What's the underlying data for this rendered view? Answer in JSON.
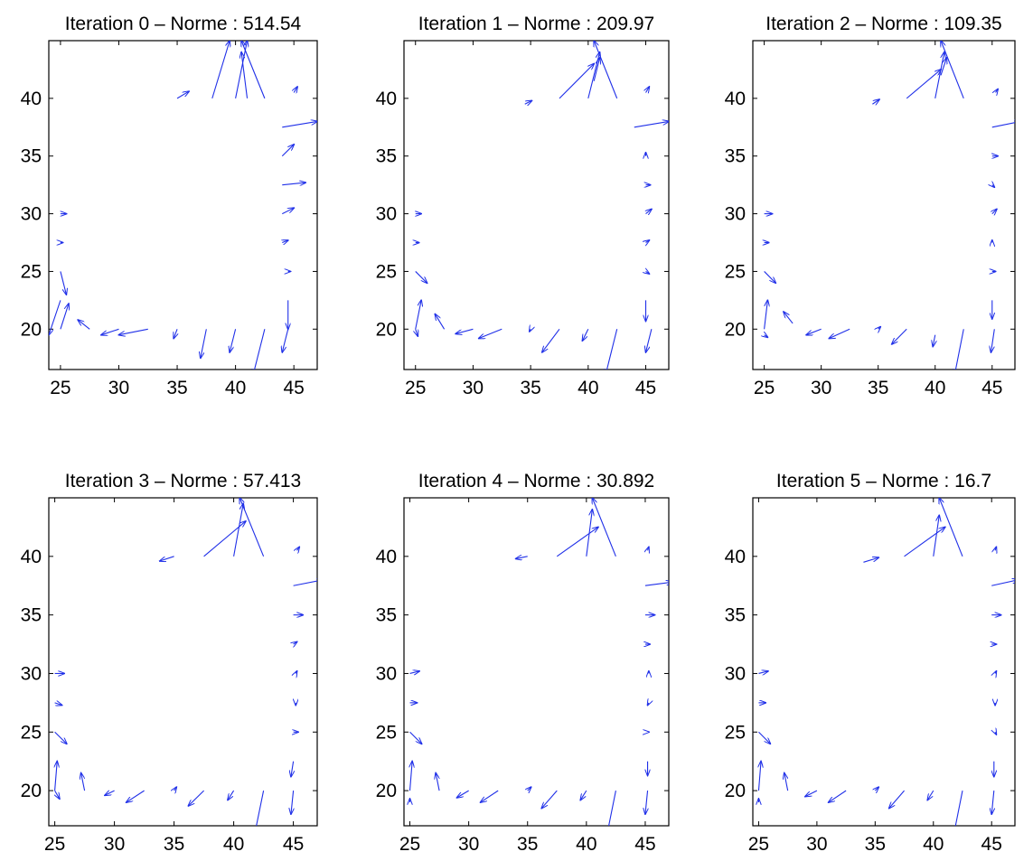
{
  "figure": {
    "arrow_color": "#1f2fe8",
    "axis_color": "#000000"
  },
  "chart_data": [
    {
      "type": "quiver",
      "title": "Iteration 0 – Norme : 514.54",
      "xlim": [
        24,
        47
      ],
      "ylim": [
        16.5,
        45
      ],
      "xticks": [
        "25",
        "30",
        "35",
        "40",
        "45"
      ],
      "yticks": [
        "20",
        "25",
        "30",
        "35",
        "40"
      ],
      "vectors": [
        [
          38,
          40,
          1.5,
          5
        ],
        [
          40,
          40,
          1,
          5
        ],
        [
          42.5,
          40,
          -2,
          5
        ],
        [
          35,
          40,
          1,
          0.6
        ],
        [
          41,
          40,
          -0.5,
          4
        ],
        [
          45,
          40.5,
          0.3,
          0.5
        ],
        [
          44,
          37.5,
          3,
          0.5
        ],
        [
          44,
          35,
          1,
          1
        ],
        [
          44,
          32.5,
          2,
          0.2
        ],
        [
          44,
          30,
          1,
          0.5
        ],
        [
          44,
          27.5,
          0.5,
          0.2
        ],
        [
          44.5,
          25,
          0.2,
          0
        ],
        [
          44.5,
          22.5,
          0,
          -2.5
        ],
        [
          44.5,
          20,
          -0.5,
          -2
        ],
        [
          42.5,
          20,
          -1,
          -4
        ],
        [
          40,
          20,
          -0.5,
          -2
        ],
        [
          37.5,
          20,
          -0.5,
          -2.5
        ],
        [
          35,
          20,
          -0.3,
          -0.8
        ],
        [
          32.5,
          20,
          -2.5,
          -0.5
        ],
        [
          30,
          20,
          -1.5,
          -0.5
        ],
        [
          27.5,
          20,
          -1,
          0.8
        ],
        [
          25,
          20,
          0.7,
          2.2
        ],
        [
          25,
          22.5,
          -1,
          -3
        ],
        [
          25,
          25,
          0.5,
          -2
        ],
        [
          25,
          27.5,
          0.2,
          0
        ],
        [
          25,
          30,
          0.5,
          0
        ]
      ]
    },
    {
      "type": "quiver",
      "title": "Iteration 1 – Norme : 209.97",
      "xlim": [
        24,
        47
      ],
      "ylim": [
        16.5,
        45
      ],
      "xticks": [
        "25",
        "30",
        "35",
        "40",
        "45"
      ],
      "yticks": [
        "20",
        "25",
        "30",
        "35",
        "40"
      ],
      "vectors": [
        [
          37.5,
          40,
          3,
          3
        ],
        [
          40,
          40,
          1,
          4
        ],
        [
          42.5,
          40,
          -2,
          5
        ],
        [
          34.5,
          39.5,
          0.6,
          0.3
        ],
        [
          40.5,
          41.5,
          0.5,
          2
        ],
        [
          45,
          40.5,
          0.3,
          0.5
        ],
        [
          44,
          37.5,
          3,
          0.5
        ],
        [
          45,
          35,
          0,
          0.3
        ],
        [
          45,
          32.5,
          0.4,
          0
        ],
        [
          45,
          30,
          0.5,
          0.4
        ],
        [
          45,
          27.5,
          0.3,
          0.2
        ],
        [
          45,
          25,
          0.3,
          -0.2
        ],
        [
          45,
          22.5,
          0,
          -1.8
        ],
        [
          45.5,
          20,
          -0.5,
          -2
        ],
        [
          42.5,
          20,
          -1,
          -4
        ],
        [
          40,
          20,
          -0.5,
          -1
        ],
        [
          37.5,
          20,
          -1.5,
          -2
        ],
        [
          35,
          20,
          -0.1,
          -0.2
        ],
        [
          32.5,
          20,
          -2,
          -0.8
        ],
        [
          30,
          20,
          -1.5,
          -0.4
        ],
        [
          27.5,
          20,
          -0.8,
          1.3
        ],
        [
          25,
          20,
          0.5,
          2.5
        ],
        [
          25,
          20,
          0.2,
          -0.6
        ],
        [
          25,
          25,
          1,
          -1
        ],
        [
          25,
          27.5,
          0.3,
          0
        ],
        [
          25,
          30,
          0.5,
          0
        ]
      ]
    },
    {
      "type": "quiver",
      "title": "Iteration 2 – Norme : 109.35",
      "xlim": [
        24,
        47
      ],
      "ylim": [
        16.5,
        45
      ],
      "xticks": [
        "25",
        "30",
        "35",
        "40",
        "45"
      ],
      "yticks": [
        "20",
        "25",
        "30",
        "35",
        "40"
      ],
      "vectors": [
        [
          37.5,
          40,
          3,
          2.5
        ],
        [
          40,
          40,
          0.8,
          4
        ],
        [
          42.5,
          40,
          -2,
          5
        ],
        [
          34.5,
          39.5,
          0.6,
          0.4
        ],
        [
          40.5,
          42,
          0.5,
          1.5
        ],
        [
          45.3,
          40.5,
          0.2,
          0.3
        ],
        [
          45,
          37.5,
          2.5,
          0.5
        ],
        [
          45,
          35,
          0.5,
          0
        ],
        [
          45,
          32.5,
          0.2,
          -0.2
        ],
        [
          45,
          30,
          0.4,
          0.4
        ],
        [
          45,
          27.5,
          0,
          0.2
        ],
        [
          45,
          25,
          0.3,
          0
        ],
        [
          45,
          22.5,
          0,
          -1.6
        ],
        [
          45.2,
          20,
          -0.3,
          -2
        ],
        [
          42.5,
          20,
          -0.8,
          -4
        ],
        [
          40,
          19.5,
          -0.2,
          -1
        ],
        [
          37.5,
          20,
          -1.3,
          -1.3
        ],
        [
          35,
          20,
          0.2,
          0.2
        ],
        [
          32.5,
          20,
          -1.8,
          -0.8
        ],
        [
          30,
          20,
          -1.3,
          -0.5
        ],
        [
          27.5,
          20.5,
          -0.8,
          1
        ],
        [
          25,
          20,
          0.3,
          2.5
        ],
        [
          25,
          19.5,
          0.3,
          -0.2
        ],
        [
          25,
          25,
          1,
          -1
        ],
        [
          25,
          27.5,
          0.4,
          0
        ],
        [
          25,
          30,
          0.7,
          0
        ]
      ]
    },
    {
      "type": "quiver",
      "title": "Iteration 3 – Norme : 57.413",
      "xlim": [
        24.5,
        47
      ],
      "ylim": [
        17,
        45
      ],
      "xticks": [
        "25",
        "30",
        "35",
        "40",
        "45"
      ],
      "yticks": [
        "20",
        "25",
        "30",
        "35",
        "40"
      ],
      "vectors": [
        [
          37.5,
          40,
          3.5,
          3
        ],
        [
          40,
          40,
          0.8,
          4.5
        ],
        [
          42.5,
          40,
          -2,
          5
        ],
        [
          35,
          40,
          -1.2,
          -0.4
        ],
        [
          45.3,
          40.5,
          0.2,
          0.3
        ],
        [
          45,
          37.5,
          2.5,
          0.5
        ],
        [
          45,
          35,
          0.8,
          0
        ],
        [
          45,
          32.5,
          0.3,
          0.2
        ],
        [
          45.2,
          30,
          0.1,
          0.2
        ],
        [
          45.2,
          27.5,
          0,
          -0.2
        ],
        [
          45,
          25,
          0.4,
          0
        ],
        [
          45,
          22.5,
          -0.2,
          -1.3
        ],
        [
          45,
          20,
          -0.2,
          -2
        ],
        [
          42.5,
          20,
          -0.8,
          -4
        ],
        [
          40,
          20,
          -0.5,
          -0.8
        ],
        [
          37.5,
          20,
          -1.3,
          -1.3
        ],
        [
          35,
          20,
          0.2,
          0.3
        ],
        [
          32.5,
          20,
          -1.5,
          -1
        ],
        [
          30,
          20,
          -0.8,
          -0.4
        ],
        [
          27.5,
          20,
          -0.3,
          1.5
        ],
        [
          25,
          20,
          0.2,
          2.5
        ],
        [
          25,
          20,
          0.4,
          -0.7
        ],
        [
          25,
          25,
          1,
          -1
        ],
        [
          25,
          27.5,
          0.6,
          -0.2
        ],
        [
          25,
          30,
          0.8,
          0
        ]
      ]
    },
    {
      "type": "quiver",
      "title": "Iteration 4 – Norme : 30.892",
      "xlim": [
        24.5,
        47
      ],
      "ylim": [
        17,
        45
      ],
      "xticks": [
        "25",
        "30",
        "35",
        "40",
        "45"
      ],
      "yticks": [
        "20",
        "25",
        "30",
        "35",
        "40"
      ],
      "vectors": [
        [
          37.5,
          40,
          3.5,
          2.5
        ],
        [
          40,
          40,
          0.5,
          4
        ],
        [
          42.5,
          40,
          -2,
          5
        ],
        [
          35,
          40,
          -1,
          -0.2
        ],
        [
          45.2,
          40.5,
          0.1,
          0.3
        ],
        [
          45,
          37.5,
          2.3,
          0.3
        ],
        [
          45,
          35,
          0.8,
          0
        ],
        [
          45,
          32.5,
          0.4,
          0
        ],
        [
          45.3,
          30,
          0,
          0.2
        ],
        [
          45.3,
          27.5,
          -0.1,
          -0.2
        ],
        [
          45.3,
          25,
          0,
          0
        ],
        [
          45.2,
          22.5,
          0,
          -1.2
        ],
        [
          45.2,
          20,
          -0.2,
          -2
        ],
        [
          42.5,
          20,
          -0.8,
          -4
        ],
        [
          40,
          20,
          -0.5,
          -0.8
        ],
        [
          37.5,
          20,
          -1.3,
          -1.5
        ],
        [
          35,
          20,
          0.3,
          0.3
        ],
        [
          32.5,
          20,
          -1.5,
          -1
        ],
        [
          30,
          20,
          -1,
          -0.6
        ],
        [
          27.5,
          20,
          -0.3,
          1.5
        ],
        [
          25,
          20,
          0.2,
          2.5
        ],
        [
          25,
          19,
          0,
          0.3
        ],
        [
          25,
          25,
          1,
          -1
        ],
        [
          25,
          27.5,
          0.6,
          0
        ],
        [
          25,
          30,
          0.8,
          0.2
        ]
      ]
    },
    {
      "type": "quiver",
      "title": "Iteration 5 – Norme : 16.7",
      "xlim": [
        24.5,
        47
      ],
      "ylim": [
        17,
        45
      ],
      "xticks": [
        "25",
        "30",
        "35",
        "40",
        "45"
      ],
      "yticks": [
        "20",
        "25",
        "30",
        "35",
        "40"
      ],
      "vectors": [
        [
          37.5,
          40,
          3.5,
          2.5
        ],
        [
          40,
          40,
          0.5,
          3.5
        ],
        [
          42.5,
          40,
          -2,
          5
        ],
        [
          34,
          39.5,
          1.3,
          0.4
        ],
        [
          45.3,
          40.5,
          0.1,
          0.3
        ],
        [
          45,
          37.5,
          2.3,
          0.5
        ],
        [
          45,
          35,
          0.8,
          0
        ],
        [
          45,
          32.5,
          0.4,
          0
        ],
        [
          45.3,
          30,
          0.1,
          0.2
        ],
        [
          45.3,
          27.5,
          0,
          -0.2
        ],
        [
          45.3,
          25,
          0.1,
          -0.2
        ],
        [
          45.2,
          22.5,
          0,
          -1.3
        ],
        [
          45.2,
          20,
          -0.2,
          -2
        ],
        [
          42.5,
          20,
          -0.8,
          -4
        ],
        [
          40,
          20,
          -0.5,
          -0.8
        ],
        [
          37.5,
          20,
          -1.3,
          -1.5
        ],
        [
          35,
          20,
          0.3,
          0.3
        ],
        [
          32.5,
          20,
          -1.5,
          -1
        ],
        [
          30,
          20,
          -1,
          -0.5
        ],
        [
          27.5,
          20,
          -0.3,
          1.5
        ],
        [
          25,
          20,
          0.2,
          2.5
        ],
        [
          25,
          19,
          0,
          0.3
        ],
        [
          25,
          25,
          1,
          -1
        ],
        [
          25,
          27.5,
          0.6,
          0
        ],
        [
          25,
          30,
          0.8,
          0.2
        ]
      ]
    }
  ]
}
